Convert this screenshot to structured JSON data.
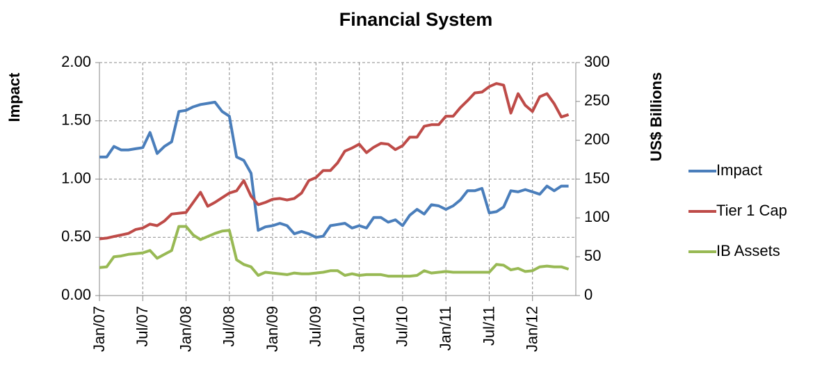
{
  "chart_data": {
    "type": "line",
    "title": "Financial System",
    "y_label": "Impact",
    "y2_label": "US$ Billions",
    "categories": [
      "Jan/07",
      null,
      null,
      null,
      null,
      null,
      "Jul/07",
      null,
      null,
      null,
      null,
      null,
      "Jan/08",
      null,
      null,
      null,
      null,
      null,
      "Jul/08",
      null,
      null,
      null,
      null,
      null,
      "Jan/09",
      null,
      null,
      null,
      null,
      null,
      "Jul/09",
      null,
      null,
      null,
      null,
      null,
      "Jan/10",
      null,
      null,
      null,
      null,
      null,
      "Jul/10",
      null,
      null,
      null,
      null,
      null,
      "Jan/11",
      null,
      null,
      null,
      null,
      null,
      "Jul/11",
      null,
      null,
      null,
      null,
      null,
      "Jan/12",
      null,
      null,
      null,
      null,
      null
    ],
    "series": [
      {
        "name": "Impact",
        "color": "#4a7ebb",
        "values": [
          1.19,
          1.19,
          1.28,
          1.25,
          1.25,
          1.26,
          1.27,
          1.4,
          1.22,
          1.28,
          1.32,
          1.58,
          1.59,
          1.62,
          1.64,
          1.65,
          1.66,
          1.58,
          1.54,
          1.19,
          1.16,
          1.05,
          0.56,
          0.59,
          0.6,
          0.62,
          0.6,
          0.53,
          0.55,
          0.53,
          0.5,
          0.51,
          0.6,
          0.61,
          0.62,
          0.58,
          0.6,
          0.58,
          0.67,
          0.67,
          0.63,
          0.65,
          0.6,
          0.69,
          0.74,
          0.7,
          0.78,
          0.77,
          0.74,
          0.77,
          0.82,
          0.9,
          0.9,
          0.92,
          0.71,
          0.72,
          0.76,
          0.9,
          0.89,
          0.91,
          0.89,
          0.87,
          0.94,
          0.9,
          0.94,
          0.94
        ]
      },
      {
        "name": "Tier 1 Cap",
        "color": "#be4b48",
        "axis": "y2",
        "values": [
          73,
          74,
          76,
          78,
          80,
          85,
          87,
          92,
          90,
          96,
          105,
          106,
          107,
          120,
          133,
          115,
          120,
          126,
          132,
          135,
          148,
          128,
          117,
          120,
          124,
          125,
          123,
          125,
          132,
          148,
          152,
          161,
          161,
          171,
          186,
          190,
          195,
          184,
          191,
          196,
          195,
          188,
          193,
          204,
          204,
          218,
          220,
          220,
          231,
          231,
          242,
          251,
          261,
          262,
          269,
          273,
          271,
          235,
          260,
          245,
          237,
          256,
          260,
          247,
          230,
          233
        ]
      },
      {
        "name": "IB Assets",
        "color": "#98b954",
        "axis": "y2",
        "values": [
          36,
          37,
          50,
          51,
          53,
          54,
          55,
          58,
          48,
          53,
          58,
          89,
          89,
          78,
          72,
          76,
          80,
          83,
          84,
          46,
          40,
          37,
          26,
          30,
          29,
          28,
          27,
          29,
          28,
          28,
          29,
          30,
          32,
          32,
          26,
          28,
          26,
          27,
          27,
          27,
          25,
          25,
          25,
          25,
          26,
          32,
          29,
          30,
          31,
          30,
          30,
          30,
          30,
          30,
          30,
          40,
          39,
          33,
          35,
          31,
          32,
          37,
          38,
          37,
          37,
          34
        ]
      }
    ],
    "ylim": [
      0,
      2
    ],
    "yticks": [
      {
        "value": 0,
        "label": "0.00"
      },
      {
        "value": 0.5,
        "label": "0.50"
      },
      {
        "value": 1,
        "label": "1.00"
      },
      {
        "value": 1.5,
        "label": "1.50"
      },
      {
        "value": 2,
        "label": "2.00"
      }
    ],
    "y2lim": [
      0,
      300
    ],
    "y2ticks": [
      0,
      50,
      100,
      150,
      200,
      250,
      300
    ],
    "grid": true,
    "legend": "right"
  }
}
